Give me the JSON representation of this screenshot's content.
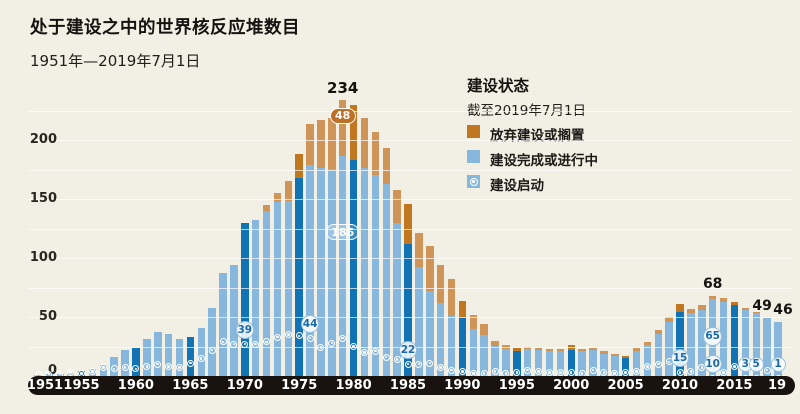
{
  "title": "处于建设之中的世界核反应堆数目",
  "subtitle": "1951年—2019年7月1日",
  "legend": {
    "title": "建设状态",
    "subtitle": "截至2019年7月1日",
    "items": [
      {
        "label": "放弃建设或搁置",
        "swatch": "square",
        "color": "#c1771f"
      },
      {
        "label": "建设完成或进行中",
        "swatch": "square",
        "color": "#88b7dd"
      },
      {
        "label": "建设启动",
        "swatch": "circle-marker",
        "color": "#88b7dd"
      }
    ]
  },
  "colors": {
    "background": "#f2efe4",
    "bar_in_progress": "#88b7dd",
    "bar_in_progress_highlight": "#1273b4",
    "bar_abandoned": "#cf9458",
    "bar_abandoned_highlight": "#c1771f",
    "axis_band": "#18130f",
    "gridline": "#ffffff",
    "circle_text": "#1a6aa8"
  },
  "axes": {
    "y_ticks": [
      0,
      50,
      100,
      150,
      200
    ],
    "x_ticks": [
      "1951",
      "1955",
      "1960",
      "1965",
      "1970",
      "1975",
      "1980",
      "1985",
      "1990",
      "1995",
      "2000",
      "2005",
      "2010",
      "2015",
      "19"
    ],
    "grid_interval": 25
  },
  "chart_data": {
    "type": "bar",
    "stacked": true,
    "x_range": [
      1951,
      2019
    ],
    "ylim": [
      0,
      234
    ],
    "series_meaning": {
      "total": "reactors under construction (bar total)",
      "abandoned_or_shelved": "放弃建设或搁置 (orange top segment)",
      "completed_or_ongoing": "建设完成或进行中 (blue segment = total - abandoned)",
      "construction_starts": "建设启动 (circle marker height)",
      "highlighted": "dark-colored bar (axis tick years)"
    },
    "years_columns": [
      "year",
      "total",
      "abandoned_or_shelved",
      "construction_starts",
      "highlighted"
    ],
    "years": [
      [
        1951,
        1,
        0,
        1,
        0
      ],
      [
        1952,
        2,
        0,
        1,
        0
      ],
      [
        1953,
        2,
        0,
        1,
        0
      ],
      [
        1954,
        3,
        0,
        3,
        0
      ],
      [
        1955,
        4,
        0,
        2,
        1
      ],
      [
        1956,
        6,
        0,
        4,
        0
      ],
      [
        1957,
        9,
        0,
        7,
        0
      ],
      [
        1958,
        16,
        0,
        6,
        0
      ],
      [
        1959,
        22,
        0,
        7,
        0
      ],
      [
        1960,
        24,
        0,
        6,
        1
      ],
      [
        1961,
        31,
        0,
        8,
        0
      ],
      [
        1962,
        37,
        0,
        10,
        0
      ],
      [
        1963,
        36,
        0,
        8,
        0
      ],
      [
        1964,
        31,
        0,
        7,
        0
      ],
      [
        1965,
        33,
        0,
        11,
        1
      ],
      [
        1966,
        41,
        0,
        15,
        0
      ],
      [
        1967,
        58,
        0,
        22,
        0
      ],
      [
        1968,
        87,
        0,
        29,
        0
      ],
      [
        1969,
        94,
        0,
        27,
        0
      ],
      [
        1970,
        130,
        0,
        39,
        1
      ],
      [
        1971,
        132,
        0,
        27,
        0
      ],
      [
        1972,
        145,
        5,
        29,
        0
      ],
      [
        1973,
        155,
        8,
        33,
        0
      ],
      [
        1974,
        165,
        17,
        35,
        0
      ],
      [
        1975,
        188,
        20,
        34,
        1
      ],
      [
        1976,
        214,
        35,
        44,
        0
      ],
      [
        1977,
        217,
        41,
        24,
        0
      ],
      [
        1978,
        219,
        44,
        28,
        0
      ],
      [
        1979,
        234,
        48,
        32,
        0
      ],
      [
        1980,
        230,
        47,
        25,
        1
      ],
      [
        1981,
        219,
        43,
        20,
        0
      ],
      [
        1982,
        207,
        37,
        21,
        0
      ],
      [
        1983,
        193,
        30,
        16,
        0
      ],
      [
        1984,
        158,
        28,
        14,
        0
      ],
      [
        1985,
        146,
        34,
        22,
        1
      ],
      [
        1986,
        121,
        29,
        10,
        0
      ],
      [
        1987,
        110,
        38,
        11,
        0
      ],
      [
        1988,
        94,
        32,
        7,
        0
      ],
      [
        1989,
        82,
        31,
        5,
        0
      ],
      [
        1990,
        64,
        15,
        4,
        1
      ],
      [
        1991,
        52,
        12,
        2,
        0
      ],
      [
        1992,
        44,
        9,
        2,
        0
      ],
      [
        1993,
        30,
        5,
        4,
        0
      ],
      [
        1994,
        26,
        3,
        2,
        0
      ],
      [
        1995,
        24,
        3,
        3,
        1
      ],
      [
        1996,
        25,
        2,
        5,
        0
      ],
      [
        1997,
        24,
        2,
        4,
        0
      ],
      [
        1998,
        23,
        2,
        3,
        0
      ],
      [
        1999,
        23,
        2,
        3,
        0
      ],
      [
        2000,
        26,
        4,
        3,
        1
      ],
      [
        2001,
        23,
        2,
        2,
        0
      ],
      [
        2002,
        24,
        2,
        5,
        0
      ],
      [
        2003,
        21,
        2,
        3,
        0
      ],
      [
        2004,
        19,
        2,
        2,
        0
      ],
      [
        2005,
        17,
        2,
        3,
        1
      ],
      [
        2006,
        24,
        3,
        4,
        0
      ],
      [
        2007,
        29,
        3,
        8,
        0
      ],
      [
        2008,
        39,
        3,
        10,
        0
      ],
      [
        2009,
        50,
        4,
        12,
        0
      ],
      [
        2010,
        61,
        7,
        15,
        1
      ],
      [
        2011,
        57,
        4,
        4,
        0
      ],
      [
        2012,
        60,
        4,
        7,
        0
      ],
      [
        2013,
        68,
        3,
        10,
        0
      ],
      [
        2014,
        66,
        3,
        3,
        0
      ],
      [
        2015,
        63,
        3,
        8,
        1
      ],
      [
        2016,
        58,
        2,
        3,
        0
      ],
      [
        2017,
        54,
        1,
        5,
        0
      ],
      [
        2018,
        49,
        0,
        5,
        0
      ],
      [
        2019,
        46,
        0,
        1,
        0
      ]
    ],
    "labeled_starts": [
      {
        "year": 1970,
        "value": 39
      },
      {
        "year": 1976,
        "value": 44
      },
      {
        "year": 1985,
        "value": 22
      },
      {
        "year": 2010,
        "value": 15
      },
      {
        "year": 2013,
        "value": 10
      },
      {
        "year": 2016,
        "value": 3
      },
      {
        "year": 2017,
        "value": 5
      },
      {
        "year": 2019,
        "value": 1
      }
    ],
    "annotations": [
      {
        "year": 1979,
        "text": "234",
        "kind": "top-label"
      },
      {
        "year": 1979,
        "text": "48",
        "kind": "abandoned-pill"
      },
      {
        "year": 1979,
        "text": "186",
        "kind": "inprogress-pill"
      },
      {
        "year": 2013,
        "text": "68",
        "kind": "top-label"
      },
      {
        "year": 2013,
        "text": "65",
        "kind": "inprogress-circle"
      },
      {
        "year": 2018,
        "text": "49",
        "kind": "top-label"
      },
      {
        "year": 2019,
        "text": "46",
        "kind": "top-label"
      }
    ]
  }
}
